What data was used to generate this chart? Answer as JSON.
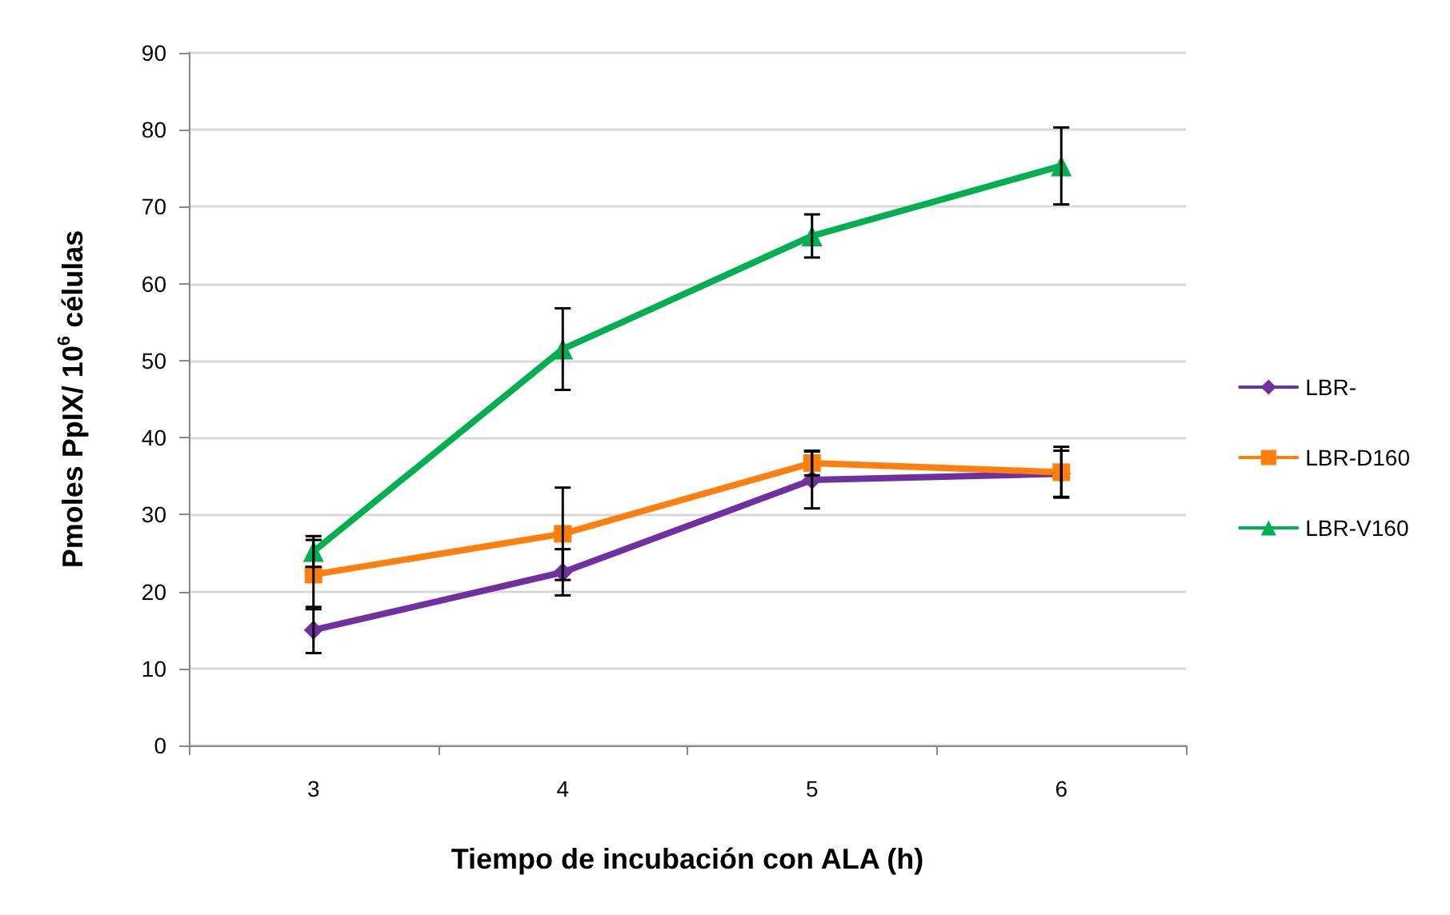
{
  "chart_data": {
    "type": "line",
    "xlabel": "Tiempo de incubación con ALA (h)",
    "ylabel": "Pmoles PpIX/ 10$^{6}$ células",
    "categories": [
      "3",
      "4",
      "5",
      "6"
    ],
    "series": [
      {
        "name": "LBR-",
        "color": "#7030a0",
        "marker": "diamond",
        "values": [
          15,
          22.5,
          34.5,
          35.3
        ],
        "errors": [
          3,
          3,
          3.7,
          3
        ]
      },
      {
        "name": "LBR-D160",
        "color": "#ff7f0e",
        "marker": "square",
        "values": [
          22.2,
          27.5,
          36.7,
          35.5
        ],
        "errors": [
          4.5,
          6,
          1.6,
          3.3
        ]
      },
      {
        "name": "LBR-V160",
        "color": "#00b050",
        "marker": "triangle",
        "values": [
          25.2,
          51.5,
          66.2,
          75.3
        ],
        "errors": [
          2,
          5.3,
          2.8,
          5
        ]
      }
    ],
    "ylim": [
      0,
      90
    ],
    "yticks": [
      0,
      10,
      20,
      30,
      40,
      50,
      60,
      70,
      80,
      90
    ],
    "grid": "y",
    "legend": "right",
    "line_style": "solid"
  }
}
